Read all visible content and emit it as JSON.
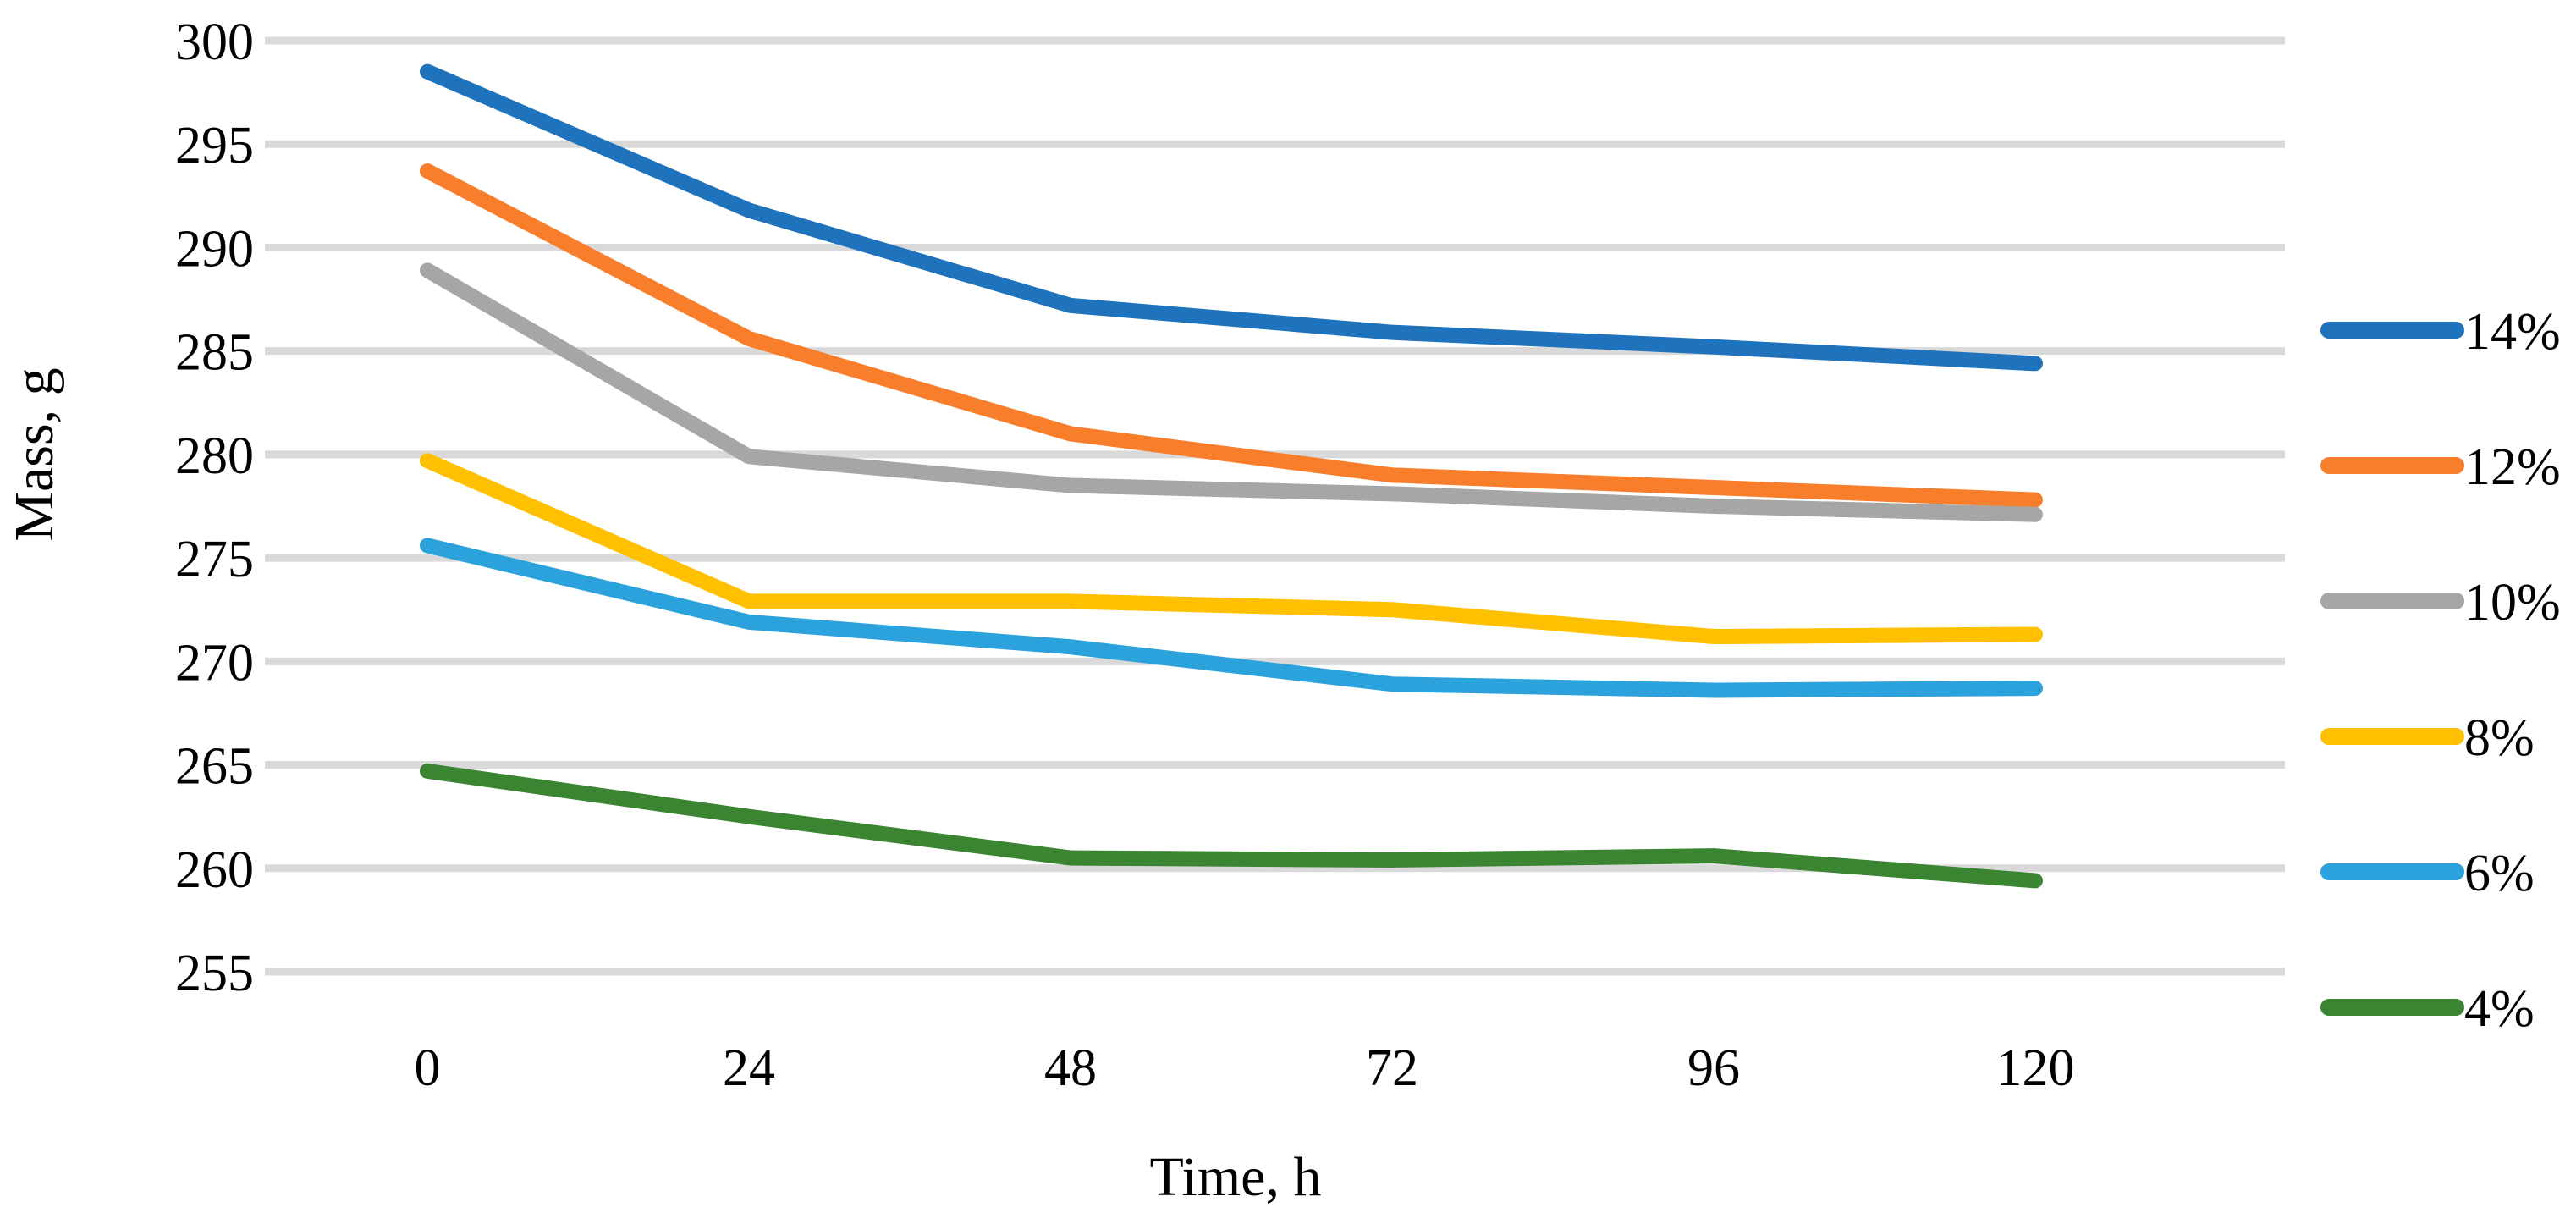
{
  "chart_data": {
    "type": "line",
    "title": "",
    "xlabel": "Time, h",
    "ylabel": "Mass, g",
    "x": [
      0,
      24,
      48,
      72,
      96,
      120
    ],
    "x_tick_labels": [
      "0",
      "24",
      "48",
      "72",
      "96",
      "120"
    ],
    "y_ticks": [
      255,
      260,
      265,
      270,
      275,
      280,
      285,
      290,
      295,
      300
    ],
    "ylim": [
      255,
      300
    ],
    "xlim": [
      0,
      120
    ],
    "grid": "horizontal",
    "gridline_color": "#d9d9d9",
    "background_color": "#ffffff",
    "legend_position": "right",
    "series": [
      {
        "name": "14%",
        "color": "#1f72bc",
        "values": [
          298.5,
          291.8,
          287.2,
          285.9,
          285.2,
          284.4
        ]
      },
      {
        "name": "12%",
        "color": "#f87e2c",
        "values": [
          293.7,
          285.6,
          281.0,
          279.0,
          278.4,
          277.8
        ]
      },
      {
        "name": "10%",
        "color": "#a6a6a6",
        "values": [
          288.9,
          279.9,
          278.5,
          278.1,
          277.5,
          277.1
        ]
      },
      {
        "name": "8%",
        "color": "#ffc000",
        "values": [
          279.7,
          272.9,
          272.9,
          272.5,
          271.2,
          271.3
        ]
      },
      {
        "name": "6%",
        "color": "#2ba2db",
        "values": [
          275.6,
          271.9,
          270.7,
          268.9,
          268.6,
          268.7
        ]
      },
      {
        "name": "4%",
        "color": "#3a8432",
        "values": [
          264.7,
          262.5,
          260.5,
          260.4,
          260.6,
          259.4
        ]
      }
    ]
  }
}
